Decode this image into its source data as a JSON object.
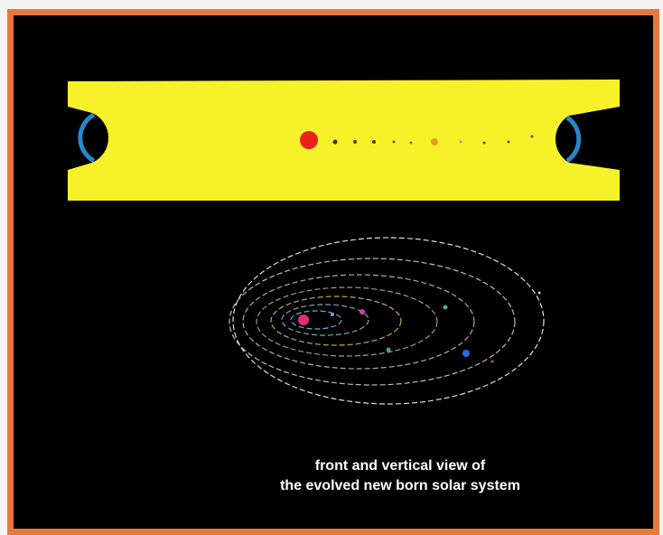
{
  "caption": {
    "lines": [
      "front and vertical view of",
      "the evolved new born solar system"
    ]
  }
}
